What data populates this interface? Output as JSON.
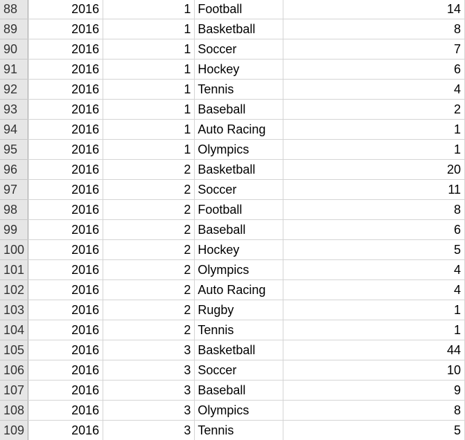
{
  "rows": [
    {
      "row": "88",
      "year": "2016",
      "rank": "1",
      "sport": "Football",
      "count": "14"
    },
    {
      "row": "89",
      "year": "2016",
      "rank": "1",
      "sport": "Basketball",
      "count": "8"
    },
    {
      "row": "90",
      "year": "2016",
      "rank": "1",
      "sport": "Soccer",
      "count": "7"
    },
    {
      "row": "91",
      "year": "2016",
      "rank": "1",
      "sport": "Hockey",
      "count": "6"
    },
    {
      "row": "92",
      "year": "2016",
      "rank": "1",
      "sport": "Tennis",
      "count": "4"
    },
    {
      "row": "93",
      "year": "2016",
      "rank": "1",
      "sport": "Baseball",
      "count": "2"
    },
    {
      "row": "94",
      "year": "2016",
      "rank": "1",
      "sport": "Auto Racing",
      "count": "1"
    },
    {
      "row": "95",
      "year": "2016",
      "rank": "1",
      "sport": "Olympics",
      "count": "1"
    },
    {
      "row": "96",
      "year": "2016",
      "rank": "2",
      "sport": "Basketball",
      "count": "20"
    },
    {
      "row": "97",
      "year": "2016",
      "rank": "2",
      "sport": "Soccer",
      "count": "11"
    },
    {
      "row": "98",
      "year": "2016",
      "rank": "2",
      "sport": "Football",
      "count": "8"
    },
    {
      "row": "99",
      "year": "2016",
      "rank": "2",
      "sport": "Baseball",
      "count": "6"
    },
    {
      "row": "100",
      "year": "2016",
      "rank": "2",
      "sport": "Hockey",
      "count": "5"
    },
    {
      "row": "101",
      "year": "2016",
      "rank": "2",
      "sport": "Olympics",
      "count": "4"
    },
    {
      "row": "102",
      "year": "2016",
      "rank": "2",
      "sport": "Auto Racing",
      "count": "4"
    },
    {
      "row": "103",
      "year": "2016",
      "rank": "2",
      "sport": "Rugby",
      "count": "1"
    },
    {
      "row": "104",
      "year": "2016",
      "rank": "2",
      "sport": "Tennis",
      "count": "1"
    },
    {
      "row": "105",
      "year": "2016",
      "rank": "3",
      "sport": "Basketball",
      "count": "44"
    },
    {
      "row": "106",
      "year": "2016",
      "rank": "3",
      "sport": "Soccer",
      "count": "10"
    },
    {
      "row": "107",
      "year": "2016",
      "rank": "3",
      "sport": "Baseball",
      "count": "9"
    },
    {
      "row": "108",
      "year": "2016",
      "rank": "3",
      "sport": "Olympics",
      "count": "8"
    },
    {
      "row": "109",
      "year": "2016",
      "rank": "3",
      "sport": "Tennis",
      "count": "5"
    }
  ]
}
